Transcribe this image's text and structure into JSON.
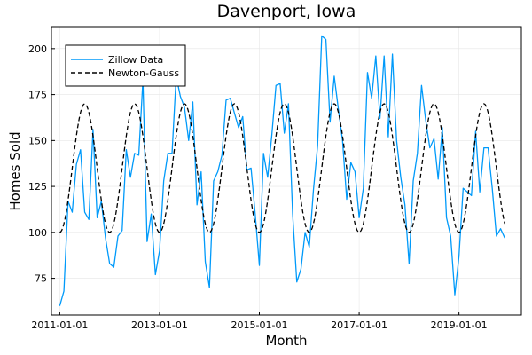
{
  "chart_data": {
    "type": "line",
    "title": "Davenport, Iowa",
    "xlabel": "Month",
    "ylabel": "Homes Sold",
    "x_ticks": [
      "2011-01-01",
      "2013-01-01",
      "2015-01-01",
      "2017-01-01",
      "2019-01-01"
    ],
    "y_ticks": [
      75,
      100,
      125,
      150,
      175,
      200
    ],
    "xlim": [
      "2010-11-01",
      "2020-04-01"
    ],
    "ylim": [
      55,
      212
    ],
    "grid": true,
    "legend_position": "top-left",
    "start_month": "2011-01",
    "series": [
      {
        "name": "Zillow Data",
        "color": "#009AFA",
        "style": "solid",
        "values": [
          60,
          68,
          117,
          111,
          137,
          145,
          111,
          107,
          156,
          108,
          117,
          97,
          83,
          81,
          98,
          101,
          145,
          130,
          143,
          142,
          183,
          95,
          110,
          77,
          90,
          128,
          143,
          143,
          185,
          174,
          168,
          150,
          171,
          115,
          133,
          84,
          70,
          128,
          133,
          142,
          172,
          173,
          165,
          157,
          163,
          134,
          135,
          110,
          82,
          143,
          130,
          153,
          180,
          181,
          154,
          170,
          110,
          73,
          80,
          100,
          92,
          123,
          147,
          207,
          205,
          160,
          185,
          167,
          150,
          118,
          138,
          133,
          108,
          124,
          187,
          173,
          196,
          162,
          196,
          152,
          197,
          150,
          130,
          115,
          83,
          128,
          143,
          180,
          161,
          146,
          151,
          129,
          157,
          108,
          98,
          66,
          87,
          124,
          122,
          120,
          155,
          122,
          146,
          146,
          124,
          98,
          102,
          97
        ]
      },
      {
        "name": "Newton-Gauss",
        "color": "#000000",
        "style": "dashed",
        "fit": {
          "mean": 135,
          "amplitude": 35,
          "period_months": 12,
          "peak_month_offset": 6
        }
      }
    ]
  }
}
